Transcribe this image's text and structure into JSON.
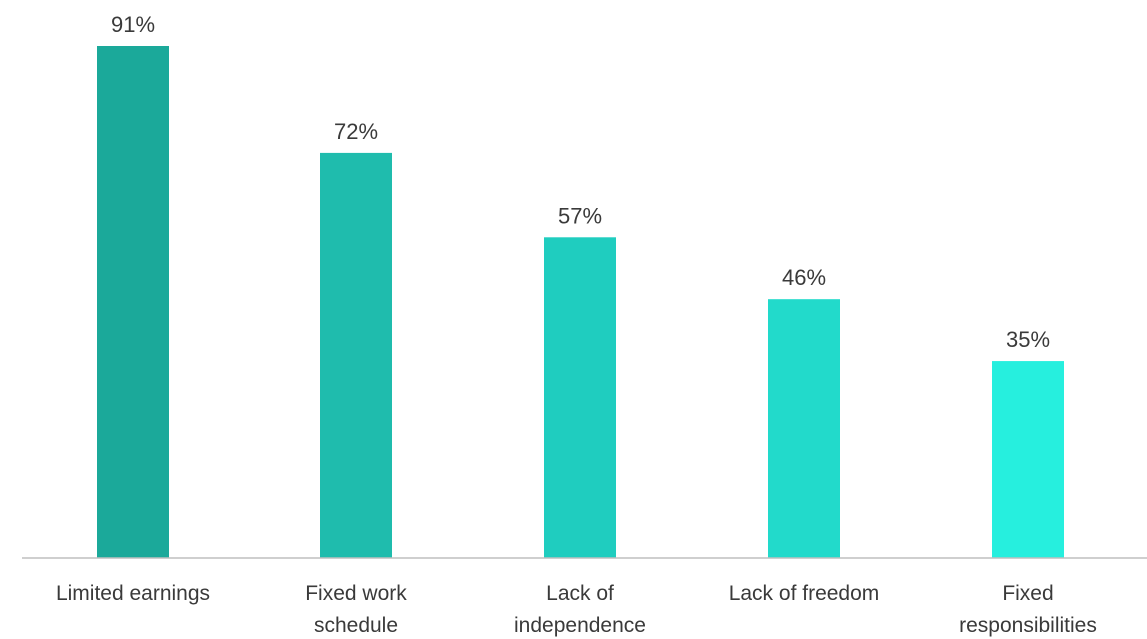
{
  "chart_data": {
    "type": "bar",
    "categories": [
      [
        "Limited earnings"
      ],
      [
        "Fixed work",
        "schedule"
      ],
      [
        "Lack of",
        "independence"
      ],
      [
        "Lack of freedom"
      ],
      [
        "Fixed",
        "responsibilities"
      ]
    ],
    "values": [
      91,
      72,
      57,
      46,
      35
    ],
    "data_labels": [
      "91%",
      "72%",
      "57%",
      "46%",
      "35%"
    ],
    "value_unit": "%",
    "ylim": [
      0,
      100
    ],
    "grid": false,
    "legend": "none",
    "bar_colors": [
      "#1ba99a",
      "#1fbcad",
      "#1fcdbf",
      "#22dacb",
      "#26efde"
    ],
    "axis_color": "#bfbfbf",
    "text_color": "#3a3a3a",
    "title": "",
    "xlabel": "",
    "ylabel": ""
  }
}
